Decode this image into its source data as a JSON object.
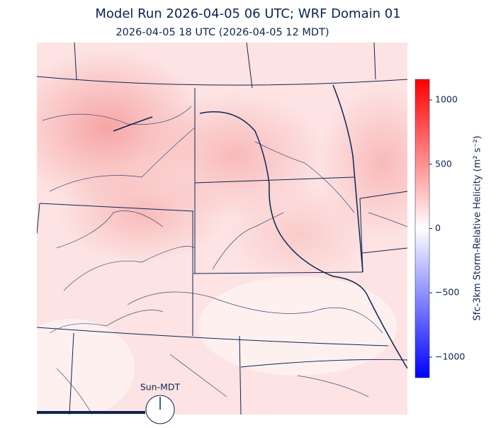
{
  "map": {
    "title": "Model Run 2026-04-05 06 UTC; WRF Domain 01",
    "subtitle": "2026-04-05 18 UTC  (2026-04-05 12 MDT)",
    "colorbar": {
      "label": "Sfc-3km Storm-Relative Helicity (m² s⁻²)",
      "lim": [
        -1160,
        1160
      ],
      "colors": [
        "#0000ff",
        "#ffffff",
        "#ff0000"
      ],
      "ticks": [
        1000,
        500,
        0,
        {
          "value": -500,
          "label": "−500"
        },
        {
          "value": -1000,
          "label": "−1000"
        }
      ]
    },
    "clock_label": "Sun-MDT"
  }
}
